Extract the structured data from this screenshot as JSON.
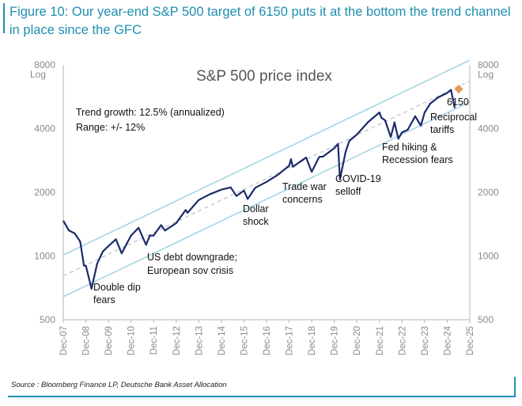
{
  "figure_title": "Figure 10: Our year-end S&P 500 target of 6150 puts it at the bottom the trend channel in place since the GFC",
  "source": "Source : Bloomberg Finance LP, Deutsche Bank Asset Allocation",
  "colors": {
    "title": "#1f8fb0",
    "series": "#1b2a6b",
    "channel": "#a8d4e8",
    "trend_dashed": "#c8c8c8",
    "target_marker": "#e39b5b",
    "axis_text": "#8a8a8a"
  },
  "chart_data": {
    "type": "line",
    "title": "S&P 500 price index",
    "y_scale": "log",
    "ylim": [
      500,
      8000
    ],
    "xlim": [
      "2007-12",
      "2025-12"
    ],
    "y_ticks": [
      500,
      1000,
      2000,
      4000,
      8000
    ],
    "y_unit_left": "Log",
    "y_unit_right": "Log",
    "x_ticks": [
      "Dec-07",
      "Dec-08",
      "Dec-09",
      "Dec-10",
      "Dec-11",
      "Dec-12",
      "Dec-13",
      "Dec-14",
      "Dec-15",
      "Dec-16",
      "Dec-17",
      "Dec-18",
      "Dec-19",
      "Dec-20",
      "Dec-21",
      "Dec-22",
      "Dec-23",
      "Dec-24",
      "Dec-25"
    ],
    "grid": false,
    "series": [
      {
        "values_x": [
          "2007-12",
          "2008-03",
          "2008-06",
          "2008-09",
          "2008-11",
          "2008-12",
          "2009-03",
          "2009-06",
          "2009-09",
          "2009-12",
          "2010-04",
          "2010-07",
          "2010-12",
          "2011-04",
          "2011-08",
          "2011-10",
          "2011-12",
          "2012-04",
          "2012-06",
          "2012-12",
          "2013-05",
          "2013-06",
          "2013-12",
          "2014-06",
          "2014-12",
          "2015-05",
          "2015-08",
          "2015-12",
          "2016-02",
          "2016-06",
          "2016-12",
          "2017-06",
          "2017-12",
          "2018-01",
          "2018-02",
          "2018-09",
          "2018-12",
          "2019-04",
          "2019-06",
          "2019-12",
          "2020-02",
          "2020-03",
          "2020-06",
          "2020-08",
          "2020-12",
          "2021-06",
          "2021-12",
          "2022-01",
          "2022-03",
          "2022-06",
          "2022-08",
          "2022-10",
          "2022-12",
          "2023-03",
          "2023-07",
          "2023-10",
          "2023-12",
          "2024-03",
          "2024-07",
          "2024-12",
          "2025-02",
          "2025-04"
        ],
        "values_y": [
          1470,
          1320,
          1280,
          1170,
          900,
          900,
          700,
          920,
          1050,
          1115,
          1200,
          1030,
          1250,
          1360,
          1130,
          1250,
          1250,
          1400,
          1320,
          1430,
          1650,
          1600,
          1840,
          1960,
          2060,
          2110,
          1920,
          2040,
          1860,
          2100,
          2240,
          2420,
          2670,
          2870,
          2640,
          2920,
          2500,
          2940,
          2950,
          3230,
          3390,
          2300,
          3100,
          3500,
          3750,
          4300,
          4770,
          4500,
          4380,
          3650,
          4280,
          3580,
          3840,
          3950,
          4580,
          4130,
          4770,
          5250,
          5600,
          5900,
          6100,
          5000
        ]
      }
    ],
    "target": {
      "x": "2025-12",
      "y": 6150,
      "label": "6150"
    },
    "trend": {
      "growth_label": "Trend growth: 12.5% (annualized)",
      "range_label": "Range: +/- 12%"
    },
    "annotations": [
      {
        "lines": [
          "Double dip",
          "fears"
        ]
      },
      {
        "lines": [
          "US debt downgrade;",
          "European sov crisis"
        ]
      },
      {
        "lines": [
          "Dollar",
          "shock"
        ]
      },
      {
        "lines": [
          "Trade war",
          "concerns"
        ]
      },
      {
        "lines": [
          "COVID-19",
          "selloff"
        ]
      },
      {
        "lines": [
          "Fed hiking &",
          "Recession fears"
        ]
      },
      {
        "lines": [
          "Reciprocal",
          "tariffs"
        ]
      }
    ]
  }
}
